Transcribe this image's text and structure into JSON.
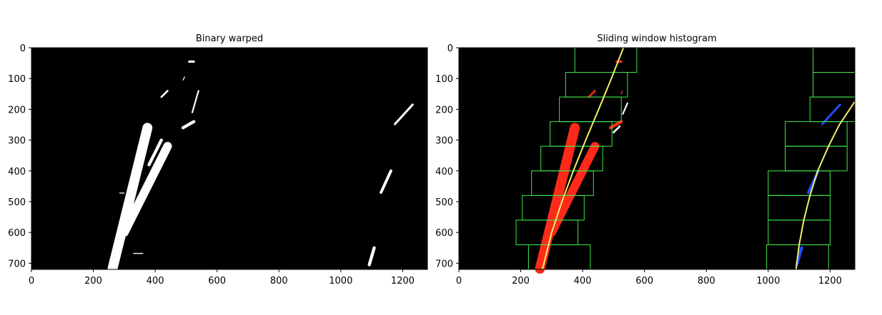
{
  "chart_data": [
    {
      "type": "image-plot",
      "title": "Binary warped",
      "xlim": [
        0,
        1280
      ],
      "ylim": [
        720,
        0
      ],
      "xticks": [
        0,
        200,
        400,
        600,
        800,
        1000,
        1200
      ],
      "yticks": [
        0,
        100,
        200,
        300,
        400,
        500,
        600,
        700
      ],
      "background_color": "#000000",
      "pixel_color": "#ffffff",
      "blobs": [
        {
          "x1": 262,
          "y1": 718,
          "x2": 375,
          "y2": 260,
          "width": 32
        },
        {
          "x1": 300,
          "y1": 600,
          "x2": 440,
          "y2": 320,
          "width": 28
        },
        {
          "x1": 380,
          "y1": 380,
          "x2": 420,
          "y2": 300,
          "width": 10
        },
        {
          "x1": 420,
          "y1": 160,
          "x2": 440,
          "y2": 140,
          "width": 6
        },
        {
          "x1": 490,
          "y1": 260,
          "x2": 525,
          "y2": 240,
          "width": 10
        },
        {
          "x1": 520,
          "y1": 210,
          "x2": 540,
          "y2": 140,
          "width": 5
        },
        {
          "x1": 510,
          "y1": 45,
          "x2": 525,
          "y2": 45,
          "width": 7
        },
        {
          "x1": 490,
          "y1": 105,
          "x2": 495,
          "y2": 95,
          "width": 3
        },
        {
          "x1": 1175,
          "y1": 248,
          "x2": 1232,
          "y2": 185,
          "width": 7
        },
        {
          "x1": 1130,
          "y1": 470,
          "x2": 1162,
          "y2": 400,
          "width": 9
        },
        {
          "x1": 1092,
          "y1": 705,
          "x2": 1108,
          "y2": 650,
          "width": 10
        },
        {
          "x1": 330,
          "y1": 668,
          "x2": 360,
          "y2": 668,
          "width": 3
        },
        {
          "x1": 285,
          "y1": 472,
          "x2": 300,
          "y2": 472,
          "width": 3
        }
      ]
    },
    {
      "type": "image-plot",
      "title": "Sliding window histogram",
      "xlim": [
        0,
        1280
      ],
      "ylim": [
        720,
        0
      ],
      "xticks": [
        0,
        200,
        400,
        600,
        800,
        1000,
        1200
      ],
      "yticks": [
        0,
        100,
        200,
        300,
        400,
        500,
        600,
        700
      ],
      "background_color": "#000000",
      "colors": {
        "left_lane": "#ff2a1a",
        "right_lane": "#1f4fff",
        "window": "#3fe84a",
        "fit": "#f2f06a",
        "residual": "#ffffff"
      },
      "left_windows": [
        {
          "x1": 225,
          "y1": 640,
          "x2": 425,
          "y2": 720
        },
        {
          "x1": 185,
          "y1": 560,
          "x2": 385,
          "y2": 640
        },
        {
          "x1": 205,
          "y1": 480,
          "x2": 405,
          "y2": 560
        },
        {
          "x1": 235,
          "y1": 400,
          "x2": 435,
          "y2": 480
        },
        {
          "x1": 265,
          "y1": 320,
          "x2": 465,
          "y2": 400
        },
        {
          "x1": 295,
          "y1": 240,
          "x2": 495,
          "y2": 320
        },
        {
          "x1": 325,
          "y1": 160,
          "x2": 525,
          "y2": 240
        },
        {
          "x1": 345,
          "y1": 80,
          "x2": 545,
          "y2": 160
        },
        {
          "x1": 375,
          "y1": 0,
          "x2": 575,
          "y2": 80
        }
      ],
      "right_windows": [
        {
          "x1": 995,
          "y1": 640,
          "x2": 1195,
          "y2": 720
        },
        {
          "x1": 1000,
          "y1": 560,
          "x2": 1200,
          "y2": 640
        },
        {
          "x1": 1000,
          "y1": 480,
          "x2": 1200,
          "y2": 560
        },
        {
          "x1": 1000,
          "y1": 400,
          "x2": 1200,
          "y2": 480
        },
        {
          "x1": 1055,
          "y1": 320,
          "x2": 1255,
          "y2": 400
        },
        {
          "x1": 1055,
          "y1": 240,
          "x2": 1255,
          "y2": 320
        },
        {
          "x1": 1135,
          "y1": 160,
          "x2": 1335,
          "y2": 240
        },
        {
          "x1": 1145,
          "y1": 80,
          "x2": 1345,
          "y2": 160
        },
        {
          "x1": 1145,
          "y1": 0,
          "x2": 1345,
          "y2": 80
        }
      ],
      "left_fit": {
        "y": [
          0,
          100,
          200,
          300,
          400,
          500,
          600,
          720
        ],
        "x": [
          532,
          493,
          452,
          410,
          370,
          333,
          300,
          270
        ]
      },
      "right_fit": {
        "y": [
          175,
          250,
          320,
          400,
          480,
          560,
          640,
          720
        ],
        "x": [
          1280,
          1230,
          1195,
          1160,
          1135,
          1115,
          1100,
          1090
        ]
      },
      "left_blobs": [
        {
          "x1": 262,
          "y1": 718,
          "x2": 375,
          "y2": 260,
          "width": 32
        },
        {
          "x1": 300,
          "y1": 600,
          "x2": 440,
          "y2": 320,
          "width": 28
        },
        {
          "x1": 420,
          "y1": 160,
          "x2": 440,
          "y2": 140,
          "width": 6
        },
        {
          "x1": 490,
          "y1": 260,
          "x2": 525,
          "y2": 240,
          "width": 10
        },
        {
          "x1": 510,
          "y1": 45,
          "x2": 525,
          "y2": 45,
          "width": 7
        },
        {
          "x1": 525,
          "y1": 150,
          "x2": 528,
          "y2": 140,
          "width": 3
        }
      ],
      "right_blobs": [
        {
          "x1": 1175,
          "y1": 248,
          "x2": 1232,
          "y2": 185,
          "width": 7
        },
        {
          "x1": 1130,
          "y1": 470,
          "x2": 1162,
          "y2": 400,
          "width": 9
        },
        {
          "x1": 1092,
          "y1": 705,
          "x2": 1108,
          "y2": 650,
          "width": 10
        }
      ],
      "residual_blobs": [
        {
          "x1": 530,
          "y1": 215,
          "x2": 545,
          "y2": 180,
          "width": 5
        },
        {
          "x1": 500,
          "y1": 275,
          "x2": 520,
          "y2": 255,
          "width": 6
        }
      ]
    }
  ]
}
